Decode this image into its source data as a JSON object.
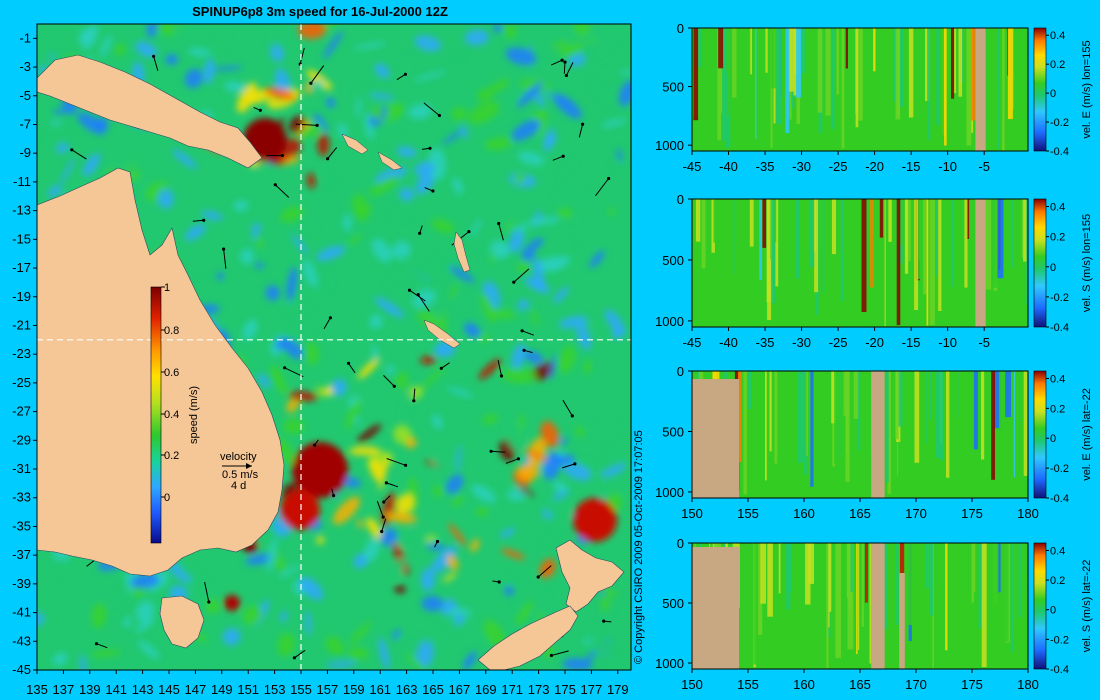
{
  "title": "SPINUP6p8 3m speed for 16-Jul-2000 12Z",
  "copyright": "© Copyright CSIRO 2009  05-Oct-2009 17:07:05",
  "colors": {
    "background": "#00ccff",
    "land": "#f5c797",
    "section_land": "#c8a882"
  },
  "main_map": {
    "lon_ticks": [
      "135",
      "137",
      "139",
      "141",
      "143",
      "145",
      "147",
      "149",
      "151",
      "153",
      "155",
      "157",
      "159",
      "161",
      "163",
      "165",
      "167",
      "169",
      "171",
      "173",
      "175",
      "177",
      "179"
    ],
    "lat_ticks": [
      "-1",
      "-3",
      "-5",
      "-7",
      "-9",
      "-11",
      "-13",
      "-15",
      "-17",
      "-19",
      "-21",
      "-23",
      "-25",
      "-27",
      "-29",
      "-31",
      "-33",
      "-35",
      "-37",
      "-39",
      "-41",
      "-43",
      "-45"
    ],
    "colorbar": {
      "label": "speed (m/s)",
      "ticks": [
        "1",
        "0.8",
        "0.6",
        "0.4",
        "0.2",
        "0"
      ]
    },
    "velocity_key": {
      "title": "velocity",
      "value": "0.5 m/s",
      "period": "4 d"
    },
    "crosshair": {
      "lon": 155,
      "lat": -22
    }
  },
  "chart_data": [
    {
      "type": "heatmap",
      "ylabel": "vel. E (m/s) lon=155",
      "x_ticks": [
        "-45",
        "-40",
        "-35",
        "-30",
        "-25",
        "-20",
        "-15",
        "-10",
        "-5"
      ],
      "y_ticks": [
        "0",
        "500",
        "1000"
      ],
      "colorbar_ticks": [
        "0.4",
        "0.2",
        "0",
        "-0.2",
        "-0.4"
      ],
      "xlim": [
        -45,
        1
      ],
      "ylim": [
        1050,
        0
      ],
      "clim": [
        -0.4,
        0.45
      ]
    },
    {
      "type": "heatmap",
      "ylabel": "vel. S (m/s) lon=155",
      "x_ticks": [
        "-45",
        "-40",
        "-35",
        "-30",
        "-25",
        "-20",
        "-15",
        "-10",
        "-5"
      ],
      "y_ticks": [
        "0",
        "500",
        "1000"
      ],
      "colorbar_ticks": [
        "0.4",
        "0.2",
        "0",
        "-0.2",
        "-0.4"
      ],
      "xlim": [
        -45,
        1
      ],
      "ylim": [
        1050,
        0
      ],
      "clim": [
        -0.4,
        0.45
      ]
    },
    {
      "type": "heatmap",
      "ylabel": "vel. E (m/s) lat=-22",
      "x_ticks": [
        "150",
        "155",
        "160",
        "165",
        "170",
        "175",
        "180"
      ],
      "y_ticks": [
        "0",
        "500",
        "1000"
      ],
      "colorbar_ticks": [
        "0.4",
        "0.2",
        "0",
        "-0.2",
        "-0.4"
      ],
      "xlim": [
        150,
        180
      ],
      "ylim": [
        1050,
        0
      ],
      "clim": [
        -0.4,
        0.45
      ]
    },
    {
      "type": "heatmap",
      "ylabel": "vel. S (m/s) lat=-22",
      "x_ticks": [
        "150",
        "155",
        "160",
        "165",
        "170",
        "175",
        "180"
      ],
      "y_ticks": [
        "0",
        "500",
        "1000"
      ],
      "colorbar_ticks": [
        "0.4",
        "0.2",
        "0",
        "-0.2",
        "-0.4"
      ],
      "xlim": [
        150,
        180
      ],
      "ylim": [
        1050,
        0
      ],
      "clim": [
        -0.4,
        0.45
      ]
    }
  ]
}
